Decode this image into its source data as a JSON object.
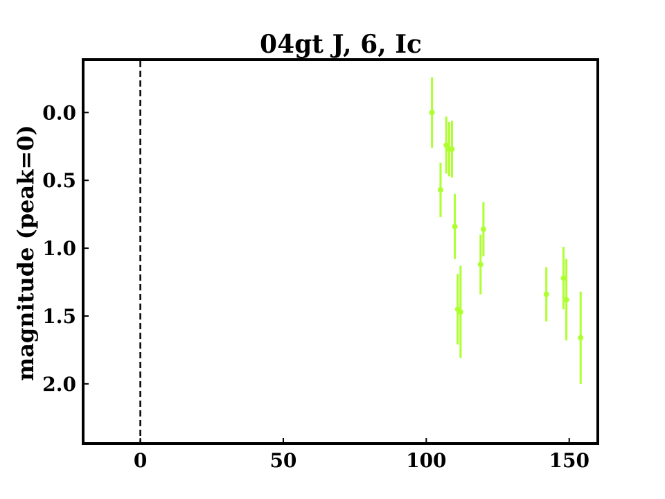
{
  "chart_data": {
    "type": "scatter",
    "title": "04gt J, 6, Ic",
    "xlabel": "",
    "ylabel": "magnitude (peak=0)",
    "xlim": [
      -20,
      160
    ],
    "ylim": [
      2.44,
      -0.39
    ],
    "y_inverted": true,
    "x_ticks": [
      "0",
      "50",
      "100",
      "150"
    ],
    "y_ticks": [
      "0.0",
      "0.5",
      "1.0",
      "1.5",
      "2.0"
    ],
    "reference_line": {
      "x": 0,
      "style": "dashed",
      "color": "#000000"
    },
    "grid": false,
    "series": [
      {
        "color": "#adff2f",
        "points": [
          {
            "x": 102.0,
            "y": 0.0,
            "err": 0.26
          },
          {
            "x": 105.0,
            "y": 0.57,
            "err": 0.2
          },
          {
            "x": 107.0,
            "y": 0.24,
            "err": 0.21
          },
          {
            "x": 108.0,
            "y": 0.27,
            "err": 0.2
          },
          {
            "x": 109.0,
            "y": 0.27,
            "err": 0.21
          },
          {
            "x": 110.0,
            "y": 0.84,
            "err": 0.24
          },
          {
            "x": 111.0,
            "y": 1.45,
            "err": 0.26
          },
          {
            "x": 112.0,
            "y": 1.47,
            "err": 0.34
          },
          {
            "x": 119.0,
            "y": 1.12,
            "err": 0.22
          },
          {
            "x": 120.0,
            "y": 0.86,
            "err": 0.2
          },
          {
            "x": 142.0,
            "y": 1.34,
            "err": 0.2
          },
          {
            "x": 148.0,
            "y": 1.22,
            "err": 0.23
          },
          {
            "x": 149.0,
            "y": 1.38,
            "err": 0.3
          },
          {
            "x": 154.0,
            "y": 1.66,
            "err": 0.34
          }
        ]
      }
    ]
  }
}
